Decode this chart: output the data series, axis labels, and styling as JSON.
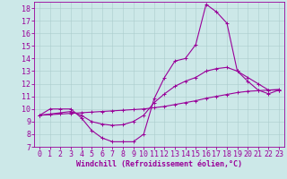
{
  "bg_color": "#cce8e8",
  "line_color": "#990099",
  "grid_color": "#aacccc",
  "xlabel": "Windchill (Refroidissement éolien,°C)",
  "xlim": [
    -0.5,
    23.5
  ],
  "ylim": [
    7,
    18.5
  ],
  "xticks": [
    0,
    1,
    2,
    3,
    4,
    5,
    6,
    7,
    8,
    9,
    10,
    11,
    12,
    13,
    14,
    15,
    16,
    17,
    18,
    19,
    20,
    21,
    22,
    23
  ],
  "yticks": [
    7,
    8,
    9,
    10,
    11,
    12,
    13,
    14,
    15,
    16,
    17,
    18
  ],
  "font_size_ticks": 6,
  "font_size_xlabel": 6,
  "curve1_x": [
    0,
    1,
    2,
    3,
    4,
    5,
    6,
    7,
    8,
    9,
    10,
    11,
    12,
    13,
    14,
    15,
    16,
    17,
    18,
    19,
    20,
    21,
    22,
    23
  ],
  "curve1_y": [
    9.5,
    10.0,
    10.0,
    10.0,
    9.3,
    8.3,
    7.7,
    7.4,
    7.4,
    7.4,
    8.0,
    10.8,
    12.5,
    13.8,
    14.0,
    15.1,
    18.3,
    17.7,
    16.8,
    13.0,
    12.2,
    11.5,
    11.2,
    11.5
  ],
  "curve2_x": [
    0,
    1,
    2,
    3,
    4,
    5,
    6,
    7,
    8,
    9,
    10,
    11,
    12,
    13,
    14,
    15,
    16,
    17,
    18,
    19,
    20,
    21,
    22,
    23
  ],
  "curve2_y": [
    9.5,
    9.55,
    9.6,
    9.65,
    9.7,
    9.75,
    9.8,
    9.85,
    9.9,
    9.95,
    10.0,
    10.1,
    10.2,
    10.35,
    10.5,
    10.65,
    10.85,
    11.0,
    11.15,
    11.3,
    11.4,
    11.45,
    11.5,
    11.55
  ],
  "curve3_x": [
    0,
    1,
    2,
    3,
    4,
    5,
    6,
    7,
    8,
    9,
    10,
    11,
    12,
    13,
    14,
    15,
    16,
    17,
    18,
    19,
    20,
    21,
    22,
    23
  ],
  "curve3_y": [
    9.5,
    9.6,
    9.7,
    9.8,
    9.5,
    9.0,
    8.8,
    8.7,
    8.75,
    9.0,
    9.5,
    10.5,
    11.2,
    11.8,
    12.2,
    12.5,
    13.0,
    13.2,
    13.3,
    13.0,
    12.5,
    12.0,
    11.5,
    11.5
  ],
  "marker": "+",
  "markersize": 3.0,
  "linewidth": 0.8
}
